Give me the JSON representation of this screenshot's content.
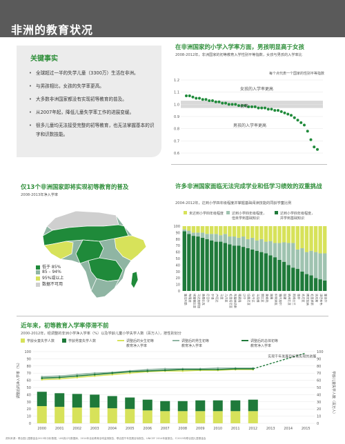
{
  "header": {
    "title": "非洲的教育状况"
  },
  "key_facts": {
    "title": "关键事实",
    "items": [
      "全球超过一半的失学儿童（3300万）生活在非洲。",
      "与男孩相比，女孩的失学率更高。",
      "大多数非洲国家都没有实现初等教育的普及。",
      "从2007年起，降低儿童失学率工作的进展变缓。",
      "很多儿童均无法接受完整的初等教育，也无法掌握基本的识字和识数技能。"
    ]
  },
  "gpi": {
    "title": "在非洲国家的小学入学率方面，男孩明显高于女孩",
    "subtitle": "2008-2012年，非洲国家的初等教育入学性别平等指数，女孩与男孩的入学率比",
    "note": "每个点代表一个国家的性别平等指数",
    "labels": {
      "girls_higher": "女孩的入学率更高",
      "parity": "初等",
      "boys_higher": "男孩的入学率更高"
    },
    "colors": {
      "dots": "#1f8a3a",
      "band": "#d9d9d9"
    }
  },
  "map": {
    "title": "仅13个非洲国家即将实现初等教育的普及",
    "subtitle": "2008-2013年净入学率",
    "legend": [
      {
        "label": "低于 85%",
        "color": "#1f8a3a"
      },
      {
        "label": "85 – 94%",
        "color": "#8fb5a3"
      },
      {
        "label": "95%或以上",
        "color": "#d7e25a"
      },
      {
        "label": "数据不可用",
        "color": "#cfcfcf"
      }
    ]
  },
  "learning": {
    "title": "许多非洲国家面临无法完成学业和低学习绩效的双重挑战",
    "subtitle": "2004-2012年，达到小学四年级程度并掌握基础阅读技能的同龄学童比例",
    "legend": [
      {
        "label": "未达到小学四年级程度",
        "color": "#d7e25a"
      },
      {
        "label": "达到小学四年级程度，但未学到基础知识",
        "color": "#9fc3b0"
      },
      {
        "label": "达到小学四年级程度，并学到基础知识",
        "color": "#1f7a3a"
      }
    ],
    "countries": [
      "塞拉利昂",
      "布隆迪",
      "埃塞俄比亚",
      "马达加斯加",
      "莫桑比克",
      "尼日尔",
      "乍得",
      "卢旺达",
      "马里",
      "几内亚",
      "毛里塔尼亚",
      "布基纳法索",
      "喀麦隆",
      "贝宁",
      "坦桑尼亚",
      "乌干达",
      "马拉维",
      "赞比亚",
      "莱索托",
      "刚果",
      "科特迪瓦",
      "塞内加尔",
      "加蓬",
      "纳米比亚",
      "斯威士兰",
      "南非",
      "肯尼亚",
      "博茨瓦纳",
      "毛里求斯",
      "突尼斯",
      "津巴布韦",
      "塞舌尔"
    ],
    "yaxis": [
      0,
      10,
      20,
      30,
      40,
      50,
      60,
      70,
      80,
      90,
      100
    ]
  },
  "trend": {
    "title": "近年来，初等教育入学率停滞不前",
    "subtitle": "2000-2012年，经调整的非洲小学净入学率（%）以及学龄儿童小学失学人数（百万人），按性别划分",
    "legend": [
      {
        "label": "学龄女童失学人数",
        "color": "#d7e25a"
      },
      {
        "label": "学龄男童失学人数",
        "color": "#1f7a3a"
      },
      {
        "label": "调整后的女生初等教育净入学率",
        "color": "#d7e25a"
      },
      {
        "label": "调整后的男生初等教育净入学率",
        "color": "#8fb5a3"
      },
      {
        "label": "调整后的总体初等教育净入学率",
        "color": "#1f7a3a"
      }
    ],
    "years": [
      "2000",
      "2001",
      "2002",
      "2003",
      "2004",
      "2005",
      "2006",
      "2007",
      "2008",
      "2009",
      "2010",
      "2011",
      "2012",
      "2013",
      "2014",
      "2015"
    ],
    "left_axis_label": "调整后的净入学率（%）",
    "right_axis_label": "学龄儿童失学人数（百万人）",
    "annotation": "实现千年发展目标需实现的进展",
    "left_ticks": [
      0,
      10,
      20,
      30,
      40,
      50,
      60,
      70,
      80,
      90,
      100
    ],
    "right_ticks": [
      0,
      10,
      20,
      30,
      40,
      50,
      60,
      70,
      80,
      90,
      100
    ]
  },
  "footer": {
    "note": "资料来源：联合国儿童基金会2015年分析数据、UIS统计与数据库、2014年全民教育全球监测报告、联合国千年发展目标报告、UNICEF 2014年度报告。©2015年联合国儿童基金会"
  },
  "chart_data": [
    {
      "type": "scatter",
      "title": "在非洲国家的小学入学率方面，男孩明显高于女孩",
      "ylabel": "",
      "ylim": [
        0.6,
        1.2
      ],
      "values": [
        1.07,
        1.07,
        1.06,
        1.05,
        1.05,
        1.04,
        1.04,
        1.03,
        1.03,
        1.02,
        1.02,
        1.01,
        1.01,
        1.0,
        1.0,
        1.0,
        0.99,
        0.99,
        0.99,
        0.98,
        0.98,
        0.98,
        0.97,
        0.97,
        0.97,
        0.96,
        0.96,
        0.95,
        0.95,
        0.94,
        0.93,
        0.92,
        0.91,
        0.89,
        0.87,
        0.85,
        0.83,
        0.78,
        0.71,
        0.65,
        0.63
      ]
    },
    {
      "type": "bar",
      "title": "许多非洲国家面临无法完成学业和低学习绩效的双重挑战",
      "categories": [
        "塞拉利昂",
        "布隆迪",
        "埃塞俄比亚",
        "马达加斯加",
        "莫桑比克",
        "尼日尔",
        "乍得",
        "卢旺达",
        "马里",
        "几内亚",
        "毛里塔尼亚",
        "布基纳法索",
        "喀麦隆",
        "贝宁",
        "坦桑尼亚",
        "乌干达",
        "马拉维",
        "赞比亚",
        "莱索托",
        "刚果",
        "科特迪瓦",
        "塞内加尔",
        "加蓬",
        "纳米比亚",
        "斯威士兰",
        "南非",
        "肯尼亚",
        "博茨瓦纳",
        "毛里求斯",
        "突尼斯",
        "津巴布韦",
        "塞舌尔"
      ],
      "ylim": [
        0,
        100
      ],
      "series": [
        {
          "name": "达到小学四年级程度，并学到基础知识",
          "values": [
            92,
            88,
            85,
            84,
            82,
            80,
            78,
            76,
            76,
            74,
            72,
            70,
            70,
            68,
            66,
            64,
            62,
            60,
            58,
            55,
            52,
            48,
            45,
            40,
            36,
            34,
            30,
            26,
            24,
            20,
            18,
            16
          ]
        },
        {
          "name": "达到小学四年级程度，但未学到基础知识",
          "values": [
            3,
            5,
            5,
            6,
            8,
            8,
            10,
            12,
            10,
            14,
            12,
            14,
            12,
            16,
            14,
            18,
            16,
            20,
            18,
            22,
            22,
            26,
            30,
            34,
            38,
            30,
            36,
            34,
            38,
            40,
            40,
            42
          ]
        },
        {
          "name": "未达到小学四年级程度",
          "values": [
            5,
            7,
            10,
            10,
            10,
            12,
            12,
            12,
            14,
            12,
            16,
            16,
            18,
            16,
            20,
            18,
            22,
            20,
            24,
            23,
            26,
            26,
            25,
            26,
            26,
            36,
            34,
            40,
            38,
            40,
            42,
            42
          ]
        }
      ]
    },
    {
      "type": "bar",
      "title": "近年来，初等教育入学率停滞不前",
      "categories": [
        "2000",
        "2001",
        "2002",
        "2003",
        "2004",
        "2005",
        "2006",
        "2007",
        "2008",
        "2009",
        "2010",
        "2011",
        "2012"
      ],
      "ylim": [
        0,
        100
      ],
      "series": [
        {
          "name": "学龄女童失学人数",
          "values": [
            24,
            23,
            22,
            22,
            21,
            20,
            18,
            17,
            17,
            17,
            17,
            17,
            17
          ]
        },
        {
          "name": "学龄男童失学人数",
          "values": [
            20,
            19,
            19,
            18,
            17,
            16,
            15,
            14,
            14,
            15,
            15,
            15,
            16
          ]
        },
        {
          "name": "调整后的女生初等教育净入学率",
          "values": [
            61,
            62,
            64,
            66,
            68,
            70,
            72,
            73,
            73,
            74,
            74,
            75,
            75
          ]
        },
        {
          "name": "调整后的男生初等教育净入学率",
          "values": [
            65,
            66,
            68,
            70,
            71,
            73,
            75,
            76,
            76,
            76,
            77,
            77,
            77
          ]
        },
        {
          "name": "调整后的总体初等教育净入学率",
          "values": [
            63,
            64,
            66,
            68,
            70,
            72,
            73,
            74,
            75,
            75,
            75,
            76,
            76
          ]
        }
      ]
    }
  ]
}
